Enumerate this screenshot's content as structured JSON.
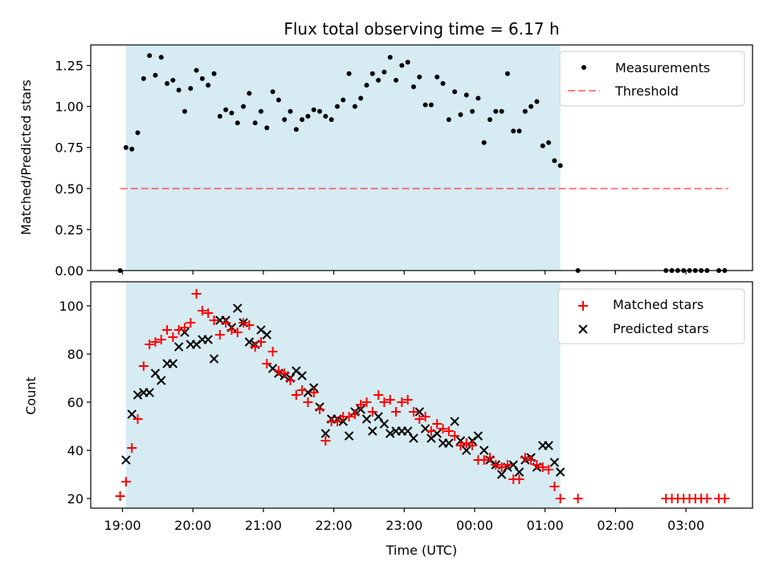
{
  "chart_data": [
    {
      "type": "scatter",
      "title": "Flux total observing time = 6.17 h",
      "xlabel": "",
      "ylabel": "Matched/Predicted stars",
      "ylim": [
        0,
        1.375
      ],
      "yticks": [
        "0.00",
        "0.25",
        "0.50",
        "0.75",
        "1.00",
        "1.25"
      ],
      "x_unit": "hours since 19:00 UTC",
      "shaded_region": {
        "start": "19:03",
        "end": "01:13",
        "color": "#add8e6"
      },
      "threshold": {
        "name": "Threshold",
        "value": 0.5,
        "color": "#ff0000",
        "x_start": "18:58",
        "x_end": "03:36"
      },
      "legend": [
        "Measurements",
        "Threshold"
      ],
      "legend_position": "upper right",
      "series": [
        {
          "name": "Measurements",
          "color": "#000000",
          "marker": "dot",
          "points": [
            [
              "18:58",
              0.0
            ],
            [
              "19:03",
              0.75
            ],
            [
              "19:08",
              0.74
            ],
            [
              "19:13",
              0.84
            ],
            [
              "19:18",
              1.17
            ],
            [
              "19:23",
              1.31
            ],
            [
              "19:28",
              1.19
            ],
            [
              "19:33",
              1.3
            ],
            [
              "19:38",
              1.14
            ],
            [
              "19:43",
              1.16
            ],
            [
              "19:48",
              1.1
            ],
            [
              "19:53",
              0.97
            ],
            [
              "19:58",
              1.11
            ],
            [
              "20:03",
              1.22
            ],
            [
              "20:08",
              1.17
            ],
            [
              "20:13",
              1.13
            ],
            [
              "20:18",
              1.2
            ],
            [
              "20:23",
              0.94
            ],
            [
              "20:28",
              0.98
            ],
            [
              "20:33",
              0.96
            ],
            [
              "20:38",
              0.9
            ],
            [
              "20:43",
              1.0
            ],
            [
              "20:48",
              1.08
            ],
            [
              "20:53",
              0.9
            ],
            [
              "20:58",
              0.97
            ],
            [
              "21:03",
              0.87
            ],
            [
              "21:08",
              1.09
            ],
            [
              "21:13",
              1.04
            ],
            [
              "21:18",
              0.92
            ],
            [
              "21:23",
              0.97
            ],
            [
              "21:28",
              0.86
            ],
            [
              "21:33",
              0.92
            ],
            [
              "21:38",
              0.94
            ],
            [
              "21:43",
              0.98
            ],
            [
              "21:48",
              0.97
            ],
            [
              "21:53",
              0.94
            ],
            [
              "21:58",
              0.92
            ],
            [
              "22:03",
              1.0
            ],
            [
              "22:08",
              1.04
            ],
            [
              "22:13",
              1.2
            ],
            [
              "22:18",
              1.0
            ],
            [
              "22:23",
              1.05
            ],
            [
              "22:28",
              1.13
            ],
            [
              "22:33",
              1.2
            ],
            [
              "22:38",
              1.16
            ],
            [
              "22:43",
              1.21
            ],
            [
              "22:48",
              1.3
            ],
            [
              "22:53",
              1.16
            ],
            [
              "22:58",
              1.25
            ],
            [
              "23:03",
              1.27
            ],
            [
              "23:08",
              1.12
            ],
            [
              "23:13",
              1.18
            ],
            [
              "23:18",
              1.01
            ],
            [
              "23:23",
              1.01
            ],
            [
              "23:28",
              1.18
            ],
            [
              "23:33",
              1.14
            ],
            [
              "23:38",
              0.92
            ],
            [
              "23:43",
              1.09
            ],
            [
              "23:48",
              0.95
            ],
            [
              "23:53",
              1.07
            ],
            [
              "23:58",
              0.97
            ],
            [
              "00:03",
              1.05
            ],
            [
              "00:08",
              0.78
            ],
            [
              "00:13",
              0.92
            ],
            [
              "00:18",
              0.97
            ],
            [
              "00:23",
              0.97
            ],
            [
              "00:28",
              1.2
            ],
            [
              "00:33",
              0.85
            ],
            [
              "00:38",
              0.85
            ],
            [
              "00:43",
              0.97
            ],
            [
              "00:48",
              1.0
            ],
            [
              "00:53",
              1.03
            ],
            [
              "00:58",
              0.76
            ],
            [
              "01:03",
              0.78
            ],
            [
              "01:08",
              0.67
            ],
            [
              "01:13",
              0.64
            ],
            [
              "01:28",
              0.0
            ],
            [
              "02:43",
              0.0
            ],
            [
              "02:48",
              0.0
            ],
            [
              "02:53",
              0.0
            ],
            [
              "02:58",
              0.0
            ],
            [
              "03:03",
              0.0
            ],
            [
              "03:08",
              0.0
            ],
            [
              "03:13",
              0.0
            ],
            [
              "03:18",
              0.0
            ],
            [
              "03:28",
              0.0
            ],
            [
              "03:33",
              0.0
            ]
          ]
        }
      ]
    },
    {
      "type": "scatter",
      "title": "",
      "xlabel": "Time (UTC)",
      "ylabel": "Count",
      "ylim": [
        16,
        110
      ],
      "yticks": [
        "20",
        "40",
        "60",
        "80",
        "100"
      ],
      "xticks": [
        "19:00",
        "20:00",
        "21:00",
        "22:00",
        "23:00",
        "00:00",
        "01:00",
        "02:00",
        "03:00"
      ],
      "xlim": [
        "18:32",
        "03:59"
      ],
      "shaded_region": {
        "start": "19:03",
        "end": "01:13",
        "color": "#add8e6"
      },
      "legend": [
        "Matched stars",
        "Predicted stars"
      ],
      "legend_position": "upper right",
      "series": [
        {
          "name": "Matched stars",
          "color": "#ff0000",
          "marker": "plus",
          "points": [
            [
              "18:58",
              21
            ],
            [
              "19:03",
              27
            ],
            [
              "19:08",
              41
            ],
            [
              "19:13",
              53
            ],
            [
              "19:18",
              75
            ],
            [
              "19:23",
              84
            ],
            [
              "19:28",
              85
            ],
            [
              "19:33",
              86
            ],
            [
              "19:38",
              90
            ],
            [
              "19:43",
              87
            ],
            [
              "19:48",
              90
            ],
            [
              "19:53",
              91
            ],
            [
              "19:58",
              93
            ],
            [
              "20:03",
              105
            ],
            [
              "20:08",
              98
            ],
            [
              "20:13",
              97
            ],
            [
              "20:18",
              94
            ],
            [
              "20:23",
              88
            ],
            [
              "20:28",
              93
            ],
            [
              "20:33",
              90
            ],
            [
              "20:38",
              89
            ],
            [
              "20:43",
              93
            ],
            [
              "20:48",
              92
            ],
            [
              "20:53",
              83
            ],
            [
              "20:58",
              85
            ],
            [
              "21:03",
              76
            ],
            [
              "21:08",
              81
            ],
            [
              "21:13",
              73
            ],
            [
              "21:18",
              72
            ],
            [
              "21:23",
              69
            ],
            [
              "21:28",
              63
            ],
            [
              "21:33",
              65
            ],
            [
              "21:38",
              60
            ],
            [
              "21:43",
              64
            ],
            [
              "21:48",
              57
            ],
            [
              "21:53",
              44
            ],
            [
              "21:58",
              52
            ],
            [
              "22:03",
              52
            ],
            [
              "22:08",
              54
            ],
            [
              "22:13",
              54
            ],
            [
              "22:18",
              55
            ],
            [
              "22:23",
              59
            ],
            [
              "22:28",
              60
            ],
            [
              "22:33",
              56
            ],
            [
              "22:38",
              63
            ],
            [
              "22:43",
              60
            ],
            [
              "22:48",
              61
            ],
            [
              "22:53",
              56
            ],
            [
              "22:58",
              60
            ],
            [
              "23:03",
              61
            ],
            [
              "23:08",
              56
            ],
            [
              "23:13",
              53
            ],
            [
              "23:18",
              54
            ],
            [
              "23:23",
              48
            ],
            [
              "23:28",
              51
            ],
            [
              "23:33",
              49
            ],
            [
              "23:38",
              48
            ],
            [
              "23:43",
              46
            ],
            [
              "23:48",
              42
            ],
            [
              "23:53",
              43
            ],
            [
              "23:58",
              42
            ],
            [
              "00:03",
              36
            ],
            [
              "00:08",
              36
            ],
            [
              "00:13",
              37
            ],
            [
              "00:18",
              34
            ],
            [
              "00:23",
              33
            ],
            [
              "00:28",
              34
            ],
            [
              "00:33",
              28
            ],
            [
              "00:38",
              28
            ],
            [
              "00:43",
              37
            ],
            [
              "00:48",
              36
            ],
            [
              "00:53",
              34
            ],
            [
              "00:58",
              33
            ],
            [
              "01:03",
              32
            ],
            [
              "01:08",
              25
            ],
            [
              "01:13",
              20
            ],
            [
              "01:28",
              20
            ],
            [
              "02:43",
              20
            ],
            [
              "02:48",
              20
            ],
            [
              "02:53",
              20
            ],
            [
              "02:58",
              20
            ],
            [
              "03:03",
              20
            ],
            [
              "03:08",
              20
            ],
            [
              "03:13",
              20
            ],
            [
              "03:18",
              20
            ],
            [
              "03:28",
              20
            ],
            [
              "03:33",
              20
            ]
          ]
        },
        {
          "name": "Predicted stars",
          "color": "#000000",
          "marker": "x",
          "points": [
            [
              "19:03",
              36
            ],
            [
              "19:08",
              55
            ],
            [
              "19:13",
              63
            ],
            [
              "19:18",
              64
            ],
            [
              "19:23",
              64
            ],
            [
              "19:28",
              72
            ],
            [
              "19:33",
              69
            ],
            [
              "19:38",
              76
            ],
            [
              "19:43",
              76
            ],
            [
              "19:48",
              83
            ],
            [
              "19:53",
              89
            ],
            [
              "19:58",
              84
            ],
            [
              "20:03",
              84
            ],
            [
              "20:08",
              86
            ],
            [
              "20:13",
              86
            ],
            [
              "20:18",
              78
            ],
            [
              "20:23",
              94
            ],
            [
              "20:28",
              94
            ],
            [
              "20:33",
              91
            ],
            [
              "20:38",
              99
            ],
            [
              "20:43",
              93
            ],
            [
              "20:48",
              85
            ],
            [
              "20:53",
              84
            ],
            [
              "20:58",
              90
            ],
            [
              "21:03",
              88
            ],
            [
              "21:08",
              74
            ],
            [
              "21:13",
              72
            ],
            [
              "21:18",
              71
            ],
            [
              "21:23",
              70
            ],
            [
              "21:28",
              73
            ],
            [
              "21:33",
              71
            ],
            [
              "21:38",
              64
            ],
            [
              "21:43",
              66
            ],
            [
              "21:48",
              58
            ],
            [
              "21:53",
              47
            ],
            [
              "21:58",
              53
            ],
            [
              "22:03",
              53
            ],
            [
              "22:08",
              52
            ],
            [
              "22:13",
              46
            ],
            [
              "22:18",
              56
            ],
            [
              "22:23",
              57
            ],
            [
              "22:28",
              53
            ],
            [
              "22:33",
              48
            ],
            [
              "22:38",
              54
            ],
            [
              "22:43",
              51
            ],
            [
              "22:48",
              47
            ],
            [
              "22:53",
              48
            ],
            [
              "22:58",
              48
            ],
            [
              "23:03",
              48
            ],
            [
              "23:08",
              45
            ],
            [
              "23:13",
              56
            ],
            [
              "23:18",
              49
            ],
            [
              "23:23",
              45
            ],
            [
              "23:28",
              47
            ],
            [
              "23:33",
              43
            ],
            [
              "23:38",
              43
            ],
            [
              "23:43",
              52
            ],
            [
              "23:48",
              44
            ],
            [
              "23:53",
              40
            ],
            [
              "23:58",
              44
            ],
            [
              "00:03",
              46
            ],
            [
              "00:08",
              40
            ],
            [
              "00:13",
              36
            ],
            [
              "00:18",
              34
            ],
            [
              "00:23",
              30
            ],
            [
              "00:28",
              33
            ],
            [
              "00:33",
              34
            ],
            [
              "00:38",
              31
            ],
            [
              "00:43",
              36
            ],
            [
              "00:48",
              37
            ],
            [
              "00:53",
              33
            ],
            [
              "00:58",
              42
            ],
            [
              "01:03",
              42
            ],
            [
              "01:08",
              35
            ],
            [
              "01:13",
              31
            ]
          ]
        }
      ]
    }
  ]
}
